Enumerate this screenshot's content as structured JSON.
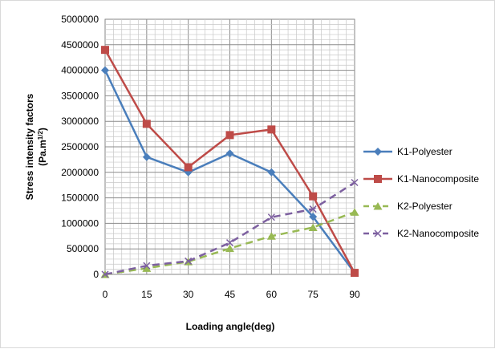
{
  "chart_data": {
    "type": "line",
    "title": "",
    "xlabel": "Loading angle(deg)",
    "ylabel": "Stress intensity factors",
    "ylabel_unit": {
      "base": "(Pa.m",
      "sup": "1/2",
      "close": ")"
    },
    "x": [
      0,
      15,
      30,
      45,
      60,
      75,
      90
    ],
    "x_tick_labels": [
      "0",
      "15",
      "30",
      "45",
      "60",
      "75",
      "90"
    ],
    "ylim": [
      0,
      5000000
    ],
    "y_tick_labels": [
      "0",
      "500000",
      "1000000",
      "1500000",
      "2000000",
      "2500000",
      "3000000",
      "3500000",
      "4000000",
      "4500000",
      "5000000"
    ],
    "grid": true,
    "legend_position": "right",
    "series": [
      {
        "name": "K1-Polyester",
        "values": [
          4000000,
          2300000,
          2000000,
          2370000,
          2000000,
          1130000,
          30000
        ],
        "color": "#4a7ebb",
        "marker": "diamond",
        "dash": "solid"
      },
      {
        "name": "K1-Nanocomposite",
        "values": [
          4400000,
          2950000,
          2100000,
          2730000,
          2840000,
          1530000,
          30000
        ],
        "color": "#be4b48",
        "marker": "square",
        "dash": "solid"
      },
      {
        "name": "K2-Polyester",
        "values": [
          0,
          120000,
          250000,
          510000,
          750000,
          920000,
          1220000
        ],
        "color": "#98b954",
        "marker": "triangle",
        "dash": "dashed"
      },
      {
        "name": "K2-Nanocomposite",
        "values": [
          0,
          170000,
          260000,
          620000,
          1120000,
          1280000,
          1800000
        ],
        "color": "#7d60a0",
        "marker": "x",
        "dash": "dashed"
      }
    ]
  }
}
